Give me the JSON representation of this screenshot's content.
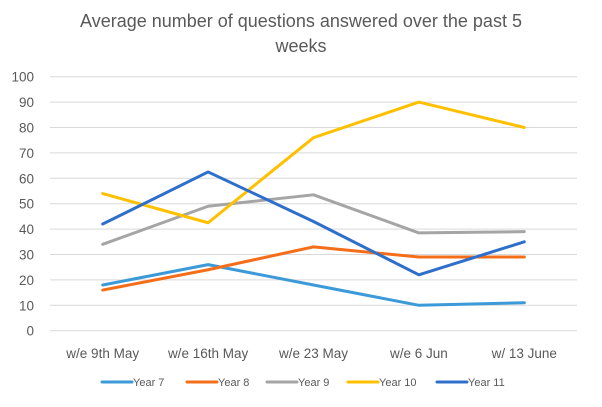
{
  "chart_data": {
    "type": "line",
    "title_lines": [
      "Average number of questions answered over the past 5",
      "weeks"
    ],
    "categories": [
      "w/e 9th May",
      "w/e 16th May",
      "w/e 23 May",
      "w/e 6 Jun",
      "w/ 13 June"
    ],
    "ylim": [
      0,
      100
    ],
    "yticks": [
      0,
      10,
      20,
      30,
      40,
      50,
      60,
      70,
      80,
      90,
      100
    ],
    "grid": true,
    "legend_position": "bottom",
    "series": [
      {
        "name": "Year 7",
        "color": "#3c9ad9",
        "values": [
          18,
          26,
          18,
          10,
          11
        ]
      },
      {
        "name": "Year 8",
        "color": "#f46e1a",
        "values": [
          16,
          24,
          33,
          29,
          29
        ]
      },
      {
        "name": "Year 9",
        "color": "#a5a5a5",
        "values": [
          34,
          49,
          53.5,
          38.5,
          39
        ]
      },
      {
        "name": "Year 10",
        "color": "#ffc000",
        "values": [
          54,
          42.5,
          76,
          90,
          80
        ]
      },
      {
        "name": "Year 11",
        "color": "#2f6fcc",
        "values": [
          42,
          62.5,
          43,
          22,
          35
        ]
      }
    ]
  }
}
